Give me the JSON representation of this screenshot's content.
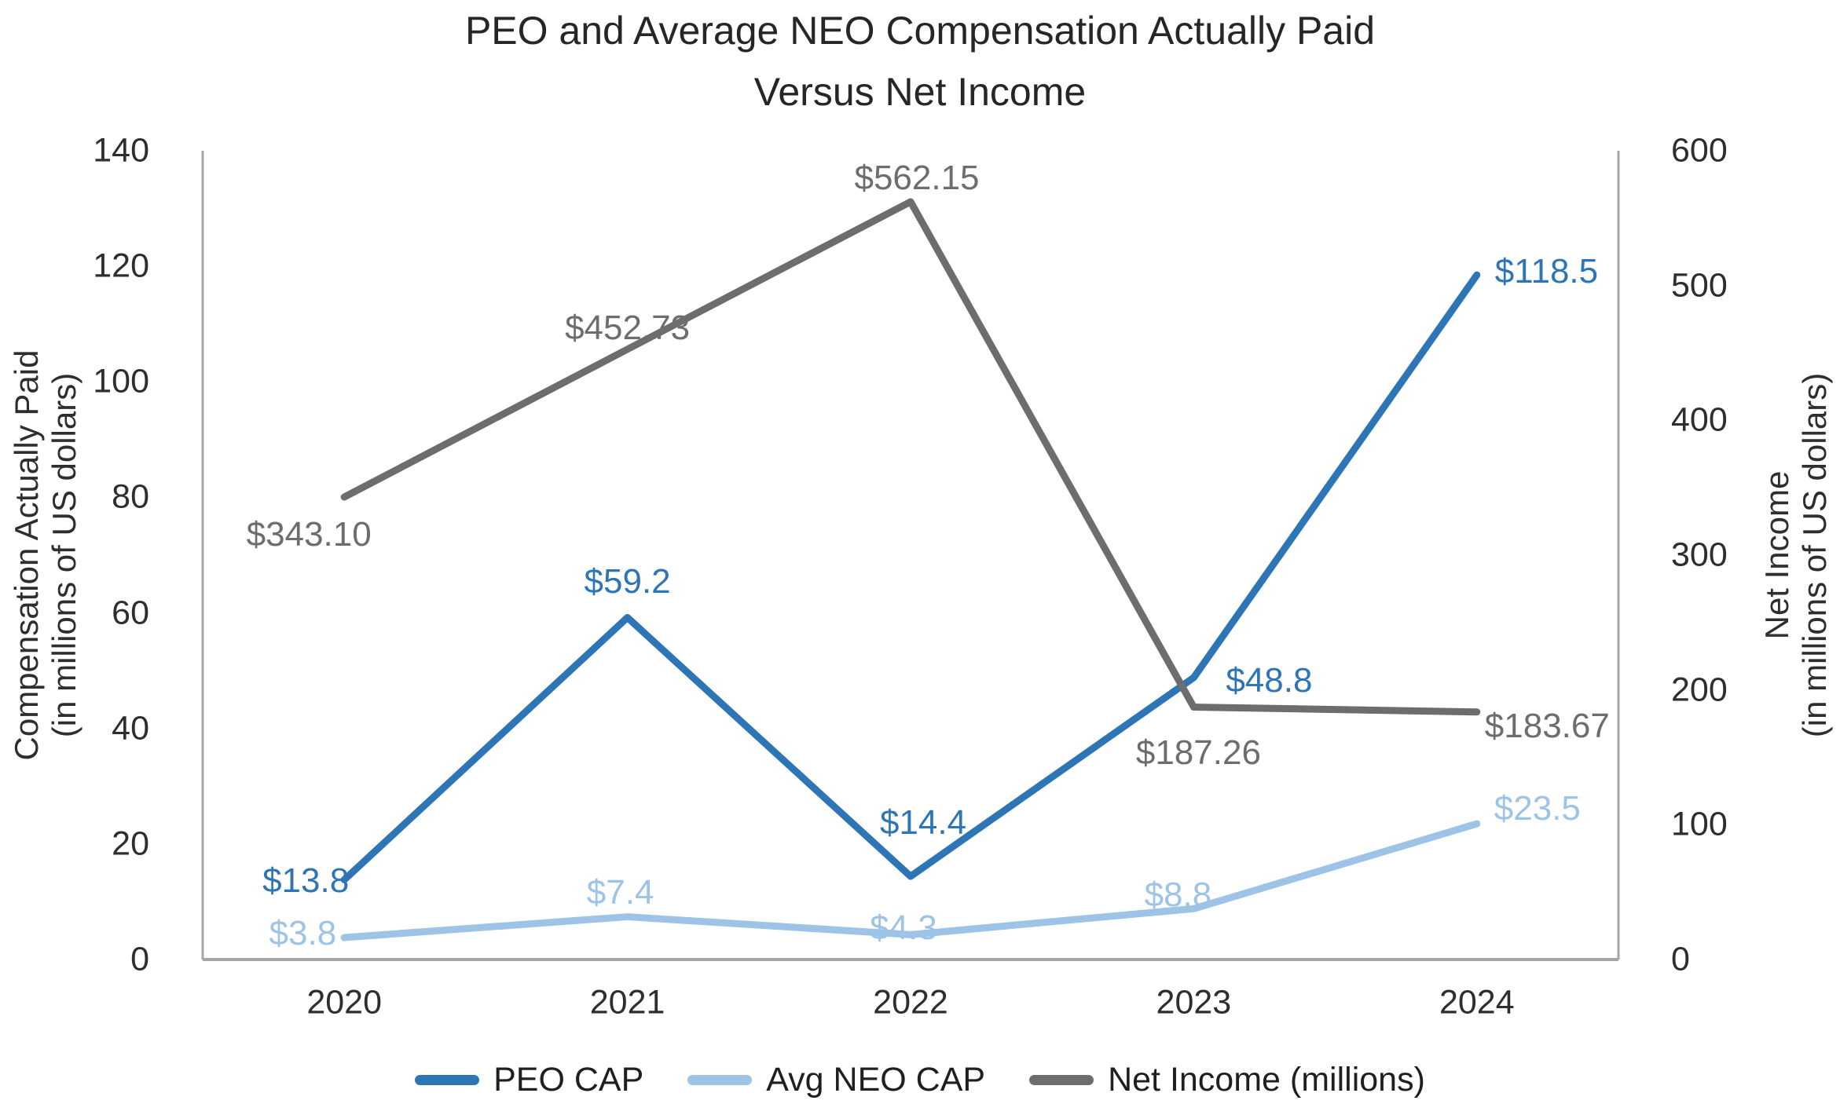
{
  "title": {
    "line1": "PEO and Average NEO Compensation Actually Paid",
    "line2": "Versus Net Income"
  },
  "left_axis": {
    "title_line1": "Compensation Actually Paid",
    "title_line2": "(in millions of US dollars)",
    "ticks": [
      0,
      20,
      40,
      60,
      80,
      100,
      120,
      140
    ],
    "max": 140
  },
  "right_axis": {
    "title_line1": "Net Income",
    "title_line2": "(in millions of US dollars)",
    "ticks": [
      0,
      100,
      200,
      300,
      400,
      500,
      600
    ],
    "max": 600
  },
  "x_axis": {
    "categories": [
      "2020",
      "2021",
      "2022",
      "2023",
      "2024"
    ]
  },
  "legend": {
    "position": "bottom",
    "items": [
      {
        "label": "PEO CAP",
        "color": "#2E75B6"
      },
      {
        "label": "Avg NEO CAP",
        "color": "#9DC3E6"
      },
      {
        "label": "Net Income (millions)",
        "color": "#6D6D6D"
      }
    ]
  },
  "colors": {
    "axis_line": "#A6A6A6",
    "tick_text": "#2E2E2E",
    "title_text": "#262626"
  },
  "chart_data": {
    "type": "line",
    "categories": [
      "2020",
      "2021",
      "2022",
      "2023",
      "2024"
    ],
    "series": [
      {
        "name": "PEO CAP",
        "axis": "left",
        "color": "#2E75B6",
        "values": [
          13.8,
          59.2,
          14.4,
          48.8,
          118.5
        ],
        "labels": [
          "$13.8",
          "$59.2",
          "$14.4",
          "$48.8",
          "$118.5"
        ]
      },
      {
        "name": "Avg NEO CAP",
        "axis": "left",
        "color": "#9DC3E6",
        "values": [
          3.8,
          7.4,
          4.3,
          8.8,
          23.5
        ],
        "labels": [
          "$3.8",
          "$7.4",
          "$4.3",
          "$8.8",
          "$23.5"
        ]
      },
      {
        "name": "Net Income (millions)",
        "axis": "right",
        "color": "#6D6D6D",
        "values": [
          343.1,
          452.73,
          562.15,
          187.26,
          183.67
        ],
        "labels": [
          "$343.10",
          "$452.73",
          "$562.15",
          "$187.26",
          "$183.67"
        ]
      }
    ],
    "left_ylim": [
      0,
      140
    ],
    "right_ylim": [
      0,
      600
    ],
    "grid": false,
    "legend_position": "bottom"
  }
}
